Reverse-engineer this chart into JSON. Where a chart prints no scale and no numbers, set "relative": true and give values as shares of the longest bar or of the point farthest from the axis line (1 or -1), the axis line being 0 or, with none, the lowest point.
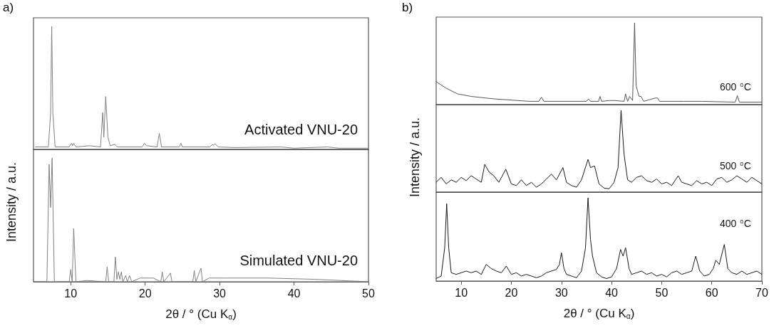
{
  "chart_data": [
    {
      "type": "line",
      "relative": true,
      "annotations": [
        "a)"
      ],
      "xlim": [
        5,
        50
      ],
      "tick_labels": false,
      "x": [
        5.2,
        7.0,
        7.3,
        7.45,
        7.6,
        7.9,
        9.8,
        10.1,
        10.25,
        10.4,
        10.7,
        12.5,
        14.0,
        14.3,
        14.45,
        14.7,
        15.0,
        15.3,
        15.9,
        16.3,
        19.6,
        19.9,
        20.2,
        21.6,
        21.9,
        22.2,
        24.6,
        24.8,
        25.0,
        28.7,
        29.0,
        29.2,
        29.4,
        29.8,
        32,
        38.2,
        40,
        44.5,
        46,
        50
      ],
      "series": [
        {
          "name": "Activated VNU-20",
          "color": "#808080",
          "values": [
            0.02,
            0.02,
            0.3,
            1.0,
            0.3,
            0.02,
            0.02,
            0.05,
            0.03,
            0.05,
            0.02,
            0.03,
            0.02,
            0.3,
            0.1,
            0.43,
            0.1,
            0.03,
            0.04,
            0.02,
            0.02,
            0.05,
            0.03,
            0.02,
            0.13,
            0.02,
            0.02,
            0.05,
            0.02,
            0.02,
            0.04,
            0.035,
            0.045,
            0.02,
            0.015,
            0.02,
            0.01,
            0.02,
            0.01,
            0.01
          ]
        }
      ]
    },
    {
      "type": "line",
      "relative": true,
      "ylabel": "Intensity / a.u.",
      "xlabel": "2θ / ° (Cu K$_{α}$)",
      "xlim": [
        5,
        50
      ],
      "xticks": [
        10,
        20,
        30,
        40,
        50
      ],
      "tick_labels": "x",
      "x": [
        5,
        6.8,
        7.1,
        7.3,
        7.5,
        7.8,
        9.8,
        10.0,
        10.2,
        10.4,
        10.7,
        12.2,
        14.7,
        14.9,
        15.1,
        15.8,
        16.0,
        16.2,
        16.4,
        16.6,
        16.8,
        17.0,
        17.4,
        17.6,
        17.9,
        18.2,
        19.3,
        20.6,
        21.1,
        22.1,
        22.3,
        22.5,
        23.4,
        23.6,
        26.4,
        26.6,
        26.8,
        27.5,
        27.7,
        28.6,
        30.8,
        34.2,
        36.4,
        42.7,
        50
      ],
      "series": [
        {
          "name": "Simulated VNU-20",
          "color": "#808080",
          "values": [
            0,
            0,
            0.95,
            0.6,
            1.0,
            0,
            0,
            0.1,
            0,
            0.43,
            0,
            0.01,
            0,
            0.12,
            0,
            0,
            0.2,
            0.02,
            0.08,
            0.02,
            0.08,
            0,
            0.05,
            0,
            0.05,
            0,
            0.03,
            0.03,
            0.03,
            0,
            0.08,
            0,
            0.07,
            0,
            0,
            0.09,
            0,
            0.11,
            0,
            0.03,
            0.03,
            0.03,
            0.03,
            0.02,
            0
          ]
        }
      ]
    },
    {
      "type": "line",
      "relative": true,
      "annotations": [
        "b)"
      ],
      "xlim": [
        5,
        70
      ],
      "tick_labels": false,
      "x": [
        5,
        7,
        9.3,
        12,
        16.5,
        23.6,
        25.5,
        26.0,
        26.5,
        35.0,
        35.4,
        35.8,
        37.4,
        37.7,
        38.0,
        39.7,
        40.5,
        42.5,
        42.8,
        43.2,
        43.6,
        44.2,
        44.6,
        44.9,
        45.5,
        45.9,
        46.4,
        48.7,
        49.2,
        49.6,
        51.9,
        54.4,
        58,
        64.7,
        65.1,
        65.5,
        70
      ],
      "series": [
        {
          "name": "600 $^{o}$C",
          "color": "#555555",
          "values": [
            0.28,
            0.2,
            0.13,
            0.1,
            0.07,
            0.04,
            0.04,
            0.09,
            0.04,
            0.04,
            0.07,
            0.04,
            0.04,
            0.1,
            0.04,
            0.05,
            0.05,
            0.04,
            0.13,
            0.04,
            0.1,
            0.05,
            1.0,
            0.23,
            0.1,
            0.1,
            0.04,
            0.08,
            0.08,
            0.04,
            0.04,
            0.04,
            0.04,
            0.03,
            0.11,
            0.03,
            0.03
          ]
        }
      ]
    },
    {
      "type": "line",
      "relative": true,
      "ylabel": "Intensity / a.u.",
      "xlim": [
        5,
        70
      ],
      "tick_labels": false,
      "x": [
        5,
        6,
        7,
        8,
        9,
        10,
        11,
        12,
        13,
        14,
        14.7,
        15.5,
        16.5,
        17.5,
        18.9,
        20,
        21,
        22,
        23,
        24,
        25,
        26,
        27,
        28,
        29,
        30.3,
        31,
        32,
        33,
        34,
        35.3,
        35.8,
        36.6,
        37.5,
        38.5,
        39.5,
        40.5,
        41.3,
        41.9,
        42.5,
        43.2,
        44,
        45,
        46,
        47,
        48,
        49,
        50,
        51,
        52,
        53.3,
        54,
        55,
        56,
        57,
        58,
        59,
        60,
        61,
        62,
        63,
        64,
        65,
        66,
        67,
        68,
        69,
        70
      ],
      "series": [
        {
          "name": "500 $^{o}$C",
          "color": "#1a1a1a",
          "values": [
            0.12,
            0.18,
            0.1,
            0.15,
            0.12,
            0.18,
            0.14,
            0.2,
            0.16,
            0.12,
            0.34,
            0.25,
            0.2,
            0.12,
            0.28,
            0.1,
            0.08,
            0.15,
            0.08,
            0.12,
            0.06,
            0.1,
            0.16,
            0.22,
            0.15,
            0.3,
            0.12,
            0.08,
            0.06,
            0.15,
            0.4,
            0.3,
            0.32,
            0.1,
            0.05,
            0.04,
            0.12,
            0.3,
            1.0,
            0.46,
            0.15,
            0.12,
            0.18,
            0.2,
            0.14,
            0.12,
            0.16,
            0.1,
            0.12,
            0.08,
            0.2,
            0.12,
            0.1,
            0.08,
            0.14,
            0.1,
            0.12,
            0.08,
            0.16,
            0.18,
            0.12,
            0.15,
            0.2,
            0.16,
            0.12,
            0.18,
            0.14,
            0.1
          ]
        }
      ]
    },
    {
      "type": "line",
      "relative": true,
      "xlabel": "2θ / ° (Cu K$_{α}$)",
      "xlim": [
        5,
        70
      ],
      "xticks": [
        10,
        20,
        30,
        40,
        50,
        60,
        70
      ],
      "tick_labels": "x",
      "x": [
        5,
        6,
        6.7,
        7.1,
        7.5,
        8,
        9,
        10,
        11,
        12,
        13,
        14,
        15,
        16,
        17,
        18,
        19,
        20,
        21,
        22,
        23,
        24,
        25,
        26,
        27,
        28,
        29,
        29.6,
        30.0,
        30.5,
        31,
        32,
        33,
        34,
        34.8,
        35.3,
        35.8,
        36.2,
        37,
        38,
        39,
        40,
        41,
        41.8,
        42.3,
        42.8,
        43.5,
        44,
        45,
        46,
        47,
        48,
        49,
        50,
        51,
        52,
        53,
        54,
        55,
        56,
        56.8,
        57.6,
        58.5,
        59.5,
        60.3,
        60.8,
        61.5,
        62.5,
        63.2,
        64,
        65,
        66,
        67,
        68,
        69,
        70
      ],
      "series": [
        {
          "name": "400 $^{o}$C",
          "color": "#1a1a1a",
          "values": [
            0.03,
            0.06,
            0.4,
            0.93,
            0.4,
            0.1,
            0.08,
            0.1,
            0.12,
            0.1,
            0.12,
            0.08,
            0.2,
            0.15,
            0.12,
            0.1,
            0.18,
            0.08,
            0.1,
            0.06,
            0.08,
            0.06,
            0.04,
            0.06,
            0.1,
            0.12,
            0.14,
            0.2,
            0.34,
            0.15,
            0.08,
            0.06,
            0.04,
            0.12,
            0.4,
            1.0,
            0.5,
            0.3,
            0.1,
            0.05,
            0.03,
            0.05,
            0.15,
            0.38,
            0.3,
            0.4,
            0.15,
            0.08,
            0.1,
            0.12,
            0.08,
            0.1,
            0.06,
            0.08,
            0.05,
            0.1,
            0.12,
            0.08,
            0.1,
            0.12,
            0.3,
            0.12,
            0.06,
            0.08,
            0.15,
            0.25,
            0.2,
            0.44,
            0.15,
            0.1,
            0.08,
            0.12,
            0.08,
            0.1,
            0.12,
            0.08
          ]
        }
      ]
    }
  ]
}
